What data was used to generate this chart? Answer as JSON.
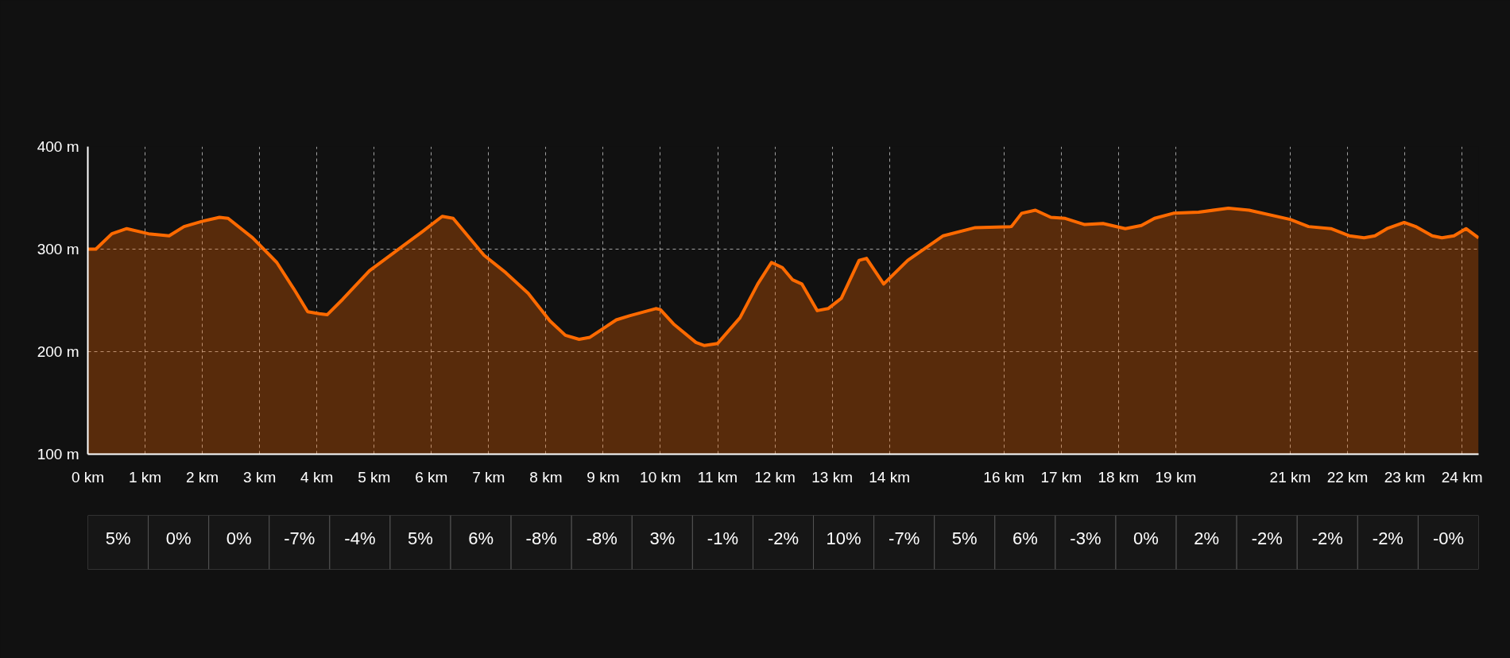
{
  "chart_data": {
    "type": "area",
    "color": "#ff6a00",
    "grid": true,
    "line_style": "solid",
    "x": [
      0,
      0.14,
      0.42,
      0.68,
      1.06,
      1.42,
      1.68,
      1.99,
      2.3,
      2.45,
      2.88,
      3.3,
      3.6,
      3.84,
      4.04,
      4.18,
      4.45,
      4.92,
      5.38,
      5.84,
      6.19,
      6.38,
      6.92,
      7.3,
      7.69,
      8.07,
      8.34,
      8.58,
      8.77,
      9.23,
      9.46,
      9.92,
      10.0,
      10.23,
      10.62,
      10.77,
      11.0,
      11.39,
      11.7,
      11.94,
      12.13,
      12.31,
      12.47,
      12.74,
      12.93,
      13.16,
      13.47,
      13.6,
      13.9,
      14.32,
      14.94,
      15.5,
      16.13,
      16.31,
      16.55,
      16.82,
      17.07,
      17.41,
      17.73,
      18.12,
      18.4,
      18.63,
      18.96,
      19.4,
      19.92,
      20.28,
      21.0,
      21.32,
      21.71,
      22.03,
      22.29,
      22.48,
      22.69,
      22.99,
      23.19,
      23.48,
      23.65,
      23.86,
      24.07,
      24.29
    ],
    "values": [
      300,
      300,
      315,
      320,
      315,
      313,
      322,
      327,
      331,
      330,
      311,
      287,
      261,
      239,
      237,
      236,
      251,
      279,
      298,
      317,
      332,
      330,
      294,
      277,
      257,
      230,
      216,
      212,
      214,
      231,
      235,
      242,
      241,
      227,
      209,
      206,
      208,
      233,
      266,
      287,
      282,
      270,
      266,
      240,
      242,
      252,
      289,
      291,
      266,
      289,
      313,
      321,
      322,
      335,
      338,
      331,
      330,
      324,
      325,
      320,
      323,
      330,
      335,
      336,
      340,
      338,
      329,
      322,
      320,
      313,
      311,
      313,
      320,
      326,
      322,
      313,
      311,
      313,
      320,
      311
    ],
    "xlim": [
      0,
      24.29
    ],
    "ylim": [
      100,
      400
    ],
    "yticks": [
      {
        "value": 100,
        "label": "100 m"
      },
      {
        "value": 200,
        "label": "200 m"
      },
      {
        "value": 300,
        "label": "300 m"
      },
      {
        "value": 400,
        "label": "400 m"
      }
    ],
    "xticks": [
      {
        "value": 0,
        "label": "0 km"
      },
      {
        "value": 1,
        "label": "1 km"
      },
      {
        "value": 2,
        "label": "2 km"
      },
      {
        "value": 3,
        "label": "3 km"
      },
      {
        "value": 4,
        "label": "4 km"
      },
      {
        "value": 5,
        "label": "5 km"
      },
      {
        "value": 6,
        "label": "6 km"
      },
      {
        "value": 7,
        "label": "7 km"
      },
      {
        "value": 8,
        "label": "8 km"
      },
      {
        "value": 9,
        "label": "9 km"
      },
      {
        "value": 10,
        "label": "10 km"
      },
      {
        "value": 11,
        "label": "11 km"
      },
      {
        "value": 12,
        "label": "12 km"
      },
      {
        "value": 13,
        "label": "13 km"
      },
      {
        "value": 14,
        "label": "14 km"
      },
      {
        "value": 16,
        "label": "16 km"
      },
      {
        "value": 17,
        "label": "17 km"
      },
      {
        "value": 18,
        "label": "18 km"
      },
      {
        "value": 19,
        "label": "19 km"
      },
      {
        "value": 21,
        "label": "21 km"
      },
      {
        "value": 22,
        "label": "22 km"
      },
      {
        "value": 23,
        "label": "23 km"
      },
      {
        "value": 24,
        "label": "24 km"
      }
    ],
    "annotations": [
      "5%",
      "0%",
      "0%",
      "-7%",
      "-4%",
      "5%",
      "6%",
      "-8%",
      "-8%",
      "3%",
      "-1%",
      "-2%",
      "10%",
      "-7%",
      "5%",
      "6%",
      "-3%",
      "0%",
      "2%",
      "-2%",
      "-2%",
      "-2%",
      "-0%"
    ]
  }
}
